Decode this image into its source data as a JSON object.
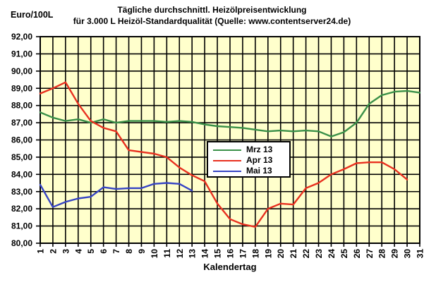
{
  "chart_data": {
    "type": "line",
    "title": "Tägliche durchschnittl. Heizölpreisentwicklung für 3.000 L Heizöl-Standardqualität (Quelle: www.contentserver24.de)",
    "title_lines": [
      "Tägliche durchschnittl. Heizölpreisentwicklung",
      "für 3.000 L Heizöl-Standardqualität (Quelle: www.contentserver24.de)"
    ],
    "xlabel": "Kalendertag",
    "ylabel": "Euro/100L",
    "xlim": [
      1,
      31
    ],
    "ylim": [
      80,
      92
    ],
    "grid": "both",
    "plot_bg": "#ffffcc",
    "grid_color": "#000000",
    "legend_position": "inside-center-left",
    "x": [
      1,
      2,
      3,
      4,
      5,
      6,
      7,
      8,
      9,
      10,
      11,
      12,
      13,
      14,
      15,
      16,
      17,
      18,
      19,
      20,
      21,
      22,
      23,
      24,
      25,
      26,
      27,
      28,
      29,
      30,
      31
    ],
    "x_tick_labels": [
      "1",
      "2",
      "3",
      "4",
      "5",
      "6",
      "7",
      "8",
      "9",
      "10",
      "11",
      "12",
      "13",
      "14",
      "15",
      "16",
      "17",
      "18",
      "19",
      "20",
      "21",
      "22",
      "23",
      "24",
      "25",
      "26",
      "27",
      "28",
      "29",
      "30",
      "31"
    ],
    "y_ticks": [
      92,
      91,
      90,
      89,
      88,
      87,
      86,
      85,
      84,
      83,
      82,
      81,
      80
    ],
    "y_tick_labels": [
      "92,00",
      "91,00",
      "90,00",
      "89,00",
      "88,00",
      "87,00",
      "86,00",
      "85,00",
      "84,00",
      "83,00",
      "82,00",
      "81,00",
      "80,00"
    ],
    "series": [
      {
        "name": "Mrz 13",
        "color": "#3a9048",
        "values": [
          87.6,
          87.3,
          87.1,
          87.2,
          87.0,
          87.2,
          87.0,
          87.1,
          87.1,
          87.1,
          87.05,
          87.1,
          87.05,
          86.9,
          86.8,
          86.75,
          86.7,
          86.6,
          86.5,
          86.55,
          86.5,
          86.55,
          86.5,
          86.2,
          86.45,
          87.0,
          88.1,
          88.6,
          88.8,
          88.85,
          88.75
        ]
      },
      {
        "name": "Apr 13",
        "color": "#e8301f",
        "values": [
          88.7,
          89.0,
          89.35,
          88.1,
          87.1,
          86.7,
          86.5,
          85.4,
          85.3,
          85.2,
          85.0,
          84.4,
          83.95,
          83.6,
          82.3,
          81.4,
          81.1,
          80.95,
          82.0,
          82.3,
          82.25,
          83.2,
          83.5,
          84.0,
          84.3,
          84.65,
          84.7,
          84.7,
          84.3,
          83.7
        ]
      },
      {
        "name": "Mai 13",
        "color": "#3644c4",
        "values": [
          83.4,
          82.1,
          82.4,
          82.6,
          82.7,
          83.25,
          83.15,
          83.2,
          83.2,
          83.45,
          83.5,
          83.45,
          83.05
        ]
      }
    ]
  }
}
